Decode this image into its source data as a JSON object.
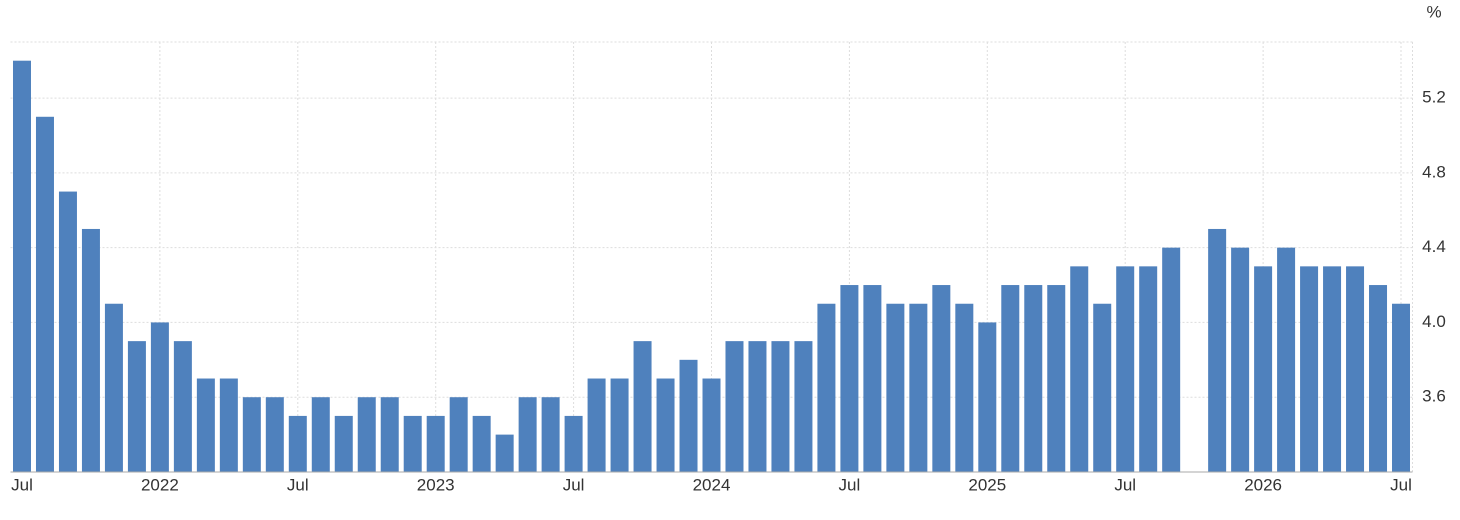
{
  "chart_data": {
    "type": "bar",
    "y_unit": "%",
    "categories": [
      "Jul",
      null,
      null,
      null,
      null,
      null,
      "2022",
      null,
      null,
      null,
      null,
      null,
      "Jul",
      null,
      null,
      null,
      null,
      null,
      "2023",
      null,
      null,
      null,
      null,
      null,
      "Jul",
      null,
      null,
      null,
      null,
      null,
      "2024",
      null,
      null,
      null,
      null,
      null,
      "Jul",
      null,
      null,
      null,
      null,
      null,
      "2025",
      null,
      null,
      null,
      null,
      null,
      "Jul",
      null,
      null,
      null,
      null,
      null,
      "2026",
      null,
      null,
      null,
      null,
      null,
      "Jul"
    ],
    "values": [
      5.4,
      5.1,
      4.7,
      4.5,
      4.1,
      3.9,
      4,
      3.9,
      3.7,
      3.7,
      3.6,
      3.6,
      3.5,
      3.6,
      3.5,
      3.6,
      3.6,
      3.5,
      3.5,
      3.6,
      3.5,
      3.4,
      3.6,
      3.6,
      3.5,
      3.7,
      3.7,
      3.9,
      3.7,
      3.8,
      3.7,
      3.9,
      3.9,
      3.9,
      3.9,
      4.1,
      4.2,
      4.2,
      4.1,
      4.1,
      4.2,
      4.1,
      4,
      4.2,
      4.2,
      4.2,
      4.3,
      4.1,
      4.3,
      4.3,
      4.4,
      null,
      4.5,
      4.4,
      4.3,
      4.4,
      4.3,
      4.3,
      4.3,
      4.2,
      4.1
    ],
    "color": "#4f81bd",
    "ylim": [
      3.2,
      5.5
    ],
    "yticks": [
      3.6,
      {
        "value": 4,
        "label": "4.0"
      },
      4.4,
      4.8,
      5.2
    ],
    "grid": true
  }
}
